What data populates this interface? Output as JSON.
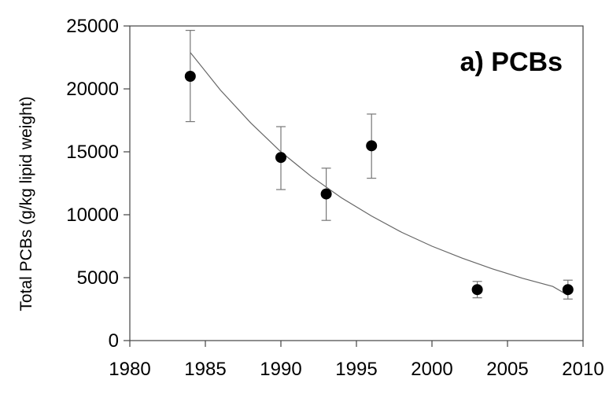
{
  "chart_data": {
    "type": "scatter",
    "title": "a) PCBs",
    "xlabel": "",
    "ylabel": "Total PCBs (g/kg lipid weight)",
    "xlim": [
      1980,
      2010
    ],
    "ylim": [
      0,
      25000
    ],
    "x_ticks": [
      1980,
      1985,
      1990,
      1995,
      2000,
      2005,
      2010
    ],
    "y_ticks": [
      0,
      5000,
      10000,
      15000,
      20000,
      25000
    ],
    "grid": false,
    "legend": "none",
    "point_color": "#000000",
    "series": [
      {
        "x": [
          1984,
          1990,
          1993,
          1996,
          2003,
          2009
        ],
        "y": [
          21000,
          14550,
          11650,
          15480,
          4050,
          4050
        ],
        "error_low": [
          17400,
          12000,
          9550,
          12900,
          3400,
          3300
        ],
        "error_high": [
          24650,
          17000,
          13700,
          18000,
          4700,
          4800
        ]
      }
    ],
    "trend_line": {
      "type": "exponential",
      "x": [
        1984,
        1986,
        1988,
        1990,
        1992,
        1994,
        1996,
        1998,
        2000,
        2002,
        2004,
        2006,
        2008,
        2009
      ],
      "y": [
        22900,
        19900,
        17300,
        15000,
        13050,
        11350,
        9900,
        8600,
        7500,
        6550,
        5700,
        4950,
        4300,
        3600
      ]
    }
  }
}
